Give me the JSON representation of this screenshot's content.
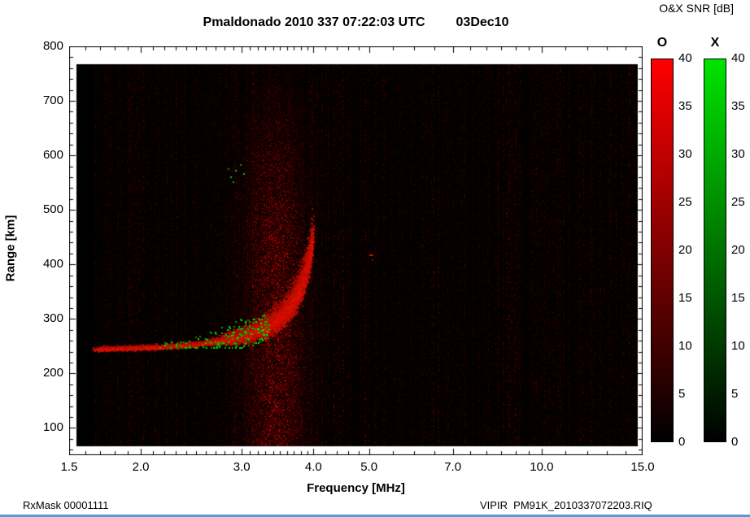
{
  "page": {
    "footer_left": "RxMask 00001111",
    "footer_right": "VIPIR  PM91K_2010337072203.RIQ"
  },
  "chart_data": {
    "type": "heatmap",
    "title": "Pmaldonado 2010 337 07:22:03 UTC",
    "date_label": "03Dec10",
    "xlabel": "Frequency [MHz]",
    "ylabel": "Range [km]",
    "x_scale": "log",
    "x_range": [
      1.5,
      15.0
    ],
    "x_ticks": [
      1.5,
      2.0,
      3.0,
      4.0,
      5.0,
      7.0,
      10.0,
      15.0
    ],
    "x_minor_ticks": [
      1.6,
      1.7,
      1.8,
      1.9,
      2.1,
      2.2,
      2.3,
      2.4,
      2.5,
      2.6,
      2.7,
      2.8,
      2.9,
      3.1,
      3.2,
      3.3,
      3.4,
      3.5,
      3.6,
      3.7,
      3.8,
      3.9,
      4.2,
      4.4,
      4.6,
      4.8,
      5.5,
      6.0,
      6.5,
      7.5,
      8.0,
      8.5,
      9.0,
      9.5,
      11.0,
      12.0,
      13.0,
      14.0
    ],
    "y_range": [
      50,
      800
    ],
    "y_ticks": [
      100,
      200,
      300,
      400,
      500,
      600,
      700,
      800
    ],
    "y_minor_step": 20,
    "grid": false,
    "colorbar": {
      "label": "O&X SNR [dB]",
      "o_label": "O",
      "x_label": "X",
      "min": 0,
      "max": 40,
      "ticks": [
        40,
        35,
        30,
        25,
        20,
        15,
        10,
        5,
        0
      ],
      "o_color": "#ff0000",
      "x_color": "#00e400",
      "background": "#000000"
    },
    "data_f_start": 1.65,
    "noise_band": {
      "f_center": 3.45,
      "f_width": 0.38
    },
    "echo_trace_o": [
      [
        1.65,
        244
      ],
      [
        1.8,
        245
      ],
      [
        2.0,
        246
      ],
      [
        2.2,
        248
      ],
      [
        2.4,
        251
      ],
      [
        2.6,
        255
      ],
      [
        2.8,
        260
      ],
      [
        3.0,
        266
      ],
      [
        3.15,
        273
      ],
      [
        3.3,
        282
      ],
      [
        3.45,
        295
      ],
      [
        3.6,
        313
      ],
      [
        3.7,
        330
      ],
      [
        3.8,
        355
      ],
      [
        3.88,
        385
      ],
      [
        3.95,
        420
      ],
      [
        3.99,
        445
      ]
    ],
    "x_trace_speckles": {
      "f_lo": 2.15,
      "f_hi": 3.35,
      "r_lo": 248,
      "r_hi": 325,
      "cluster_f_center": 3.05,
      "count": 260
    },
    "extra_speckles": [
      {
        "f": 2.87,
        "r": 560,
        "w": 2,
        "h": 2,
        "color": "#00bb22"
      },
      {
        "f": 2.93,
        "r": 572,
        "w": 2,
        "h": 2,
        "color": "#00cc22"
      },
      {
        "f": 2.98,
        "r": 583,
        "w": 2,
        "h": 2,
        "color": "#009918"
      },
      {
        "f": 2.9,
        "r": 551,
        "w": 2,
        "h": 2,
        "color": "#00aa1e"
      },
      {
        "f": 3.02,
        "r": 566,
        "w": 2,
        "h": 2,
        "color": "#00c020"
      },
      {
        "f": 2.84,
        "r": 575,
        "w": 2,
        "h": 2,
        "color": "#008814"
      },
      {
        "f": 5.02,
        "r": 418,
        "w": 5,
        "h": 2,
        "color": "#cc1100"
      },
      {
        "f": 5.06,
        "r": 408,
        "w": 2,
        "h": 2,
        "color": "#881100"
      }
    ]
  }
}
